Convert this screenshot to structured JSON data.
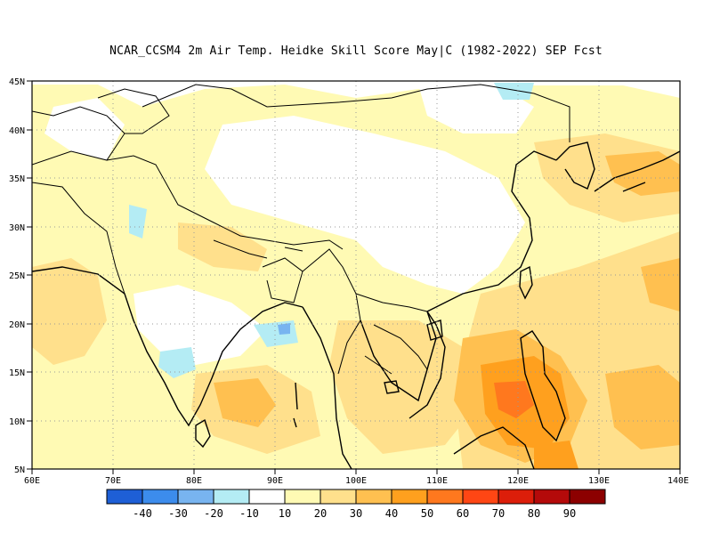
{
  "title": "NCAR_CCSM4  2m Air Temp. Heidke Skill Score May|C (1982-2022) SEP Fcst",
  "map": {
    "lon_range": [
      60,
      140
    ],
    "lat_range": [
      5,
      45
    ],
    "lon_labels": [
      "60E",
      "70E",
      "80E",
      "90E",
      "100E",
      "110E",
      "120E",
      "130E",
      "140E"
    ],
    "lat_labels": [
      "5N",
      "10N",
      "15N",
      "20N",
      "25N",
      "30N",
      "35N",
      "40N",
      "45N"
    ],
    "grid": "dotted"
  },
  "colorbar": {
    "colors": [
      "#1e5fd6",
      "#3c8cec",
      "#78b4f0",
      "#b4ecf4",
      "#ffffff",
      "#fffab4",
      "#ffe08c",
      "#ffc050",
      "#ffa01e",
      "#ff781e",
      "#ff4614",
      "#dc1e0a",
      "#b40a0a",
      "#8c0000"
    ],
    "labels": [
      "-40",
      "-30",
      "-20",
      "-10",
      "10",
      "20",
      "30",
      "40",
      "50",
      "60",
      "70",
      "80",
      "90"
    ]
  }
}
